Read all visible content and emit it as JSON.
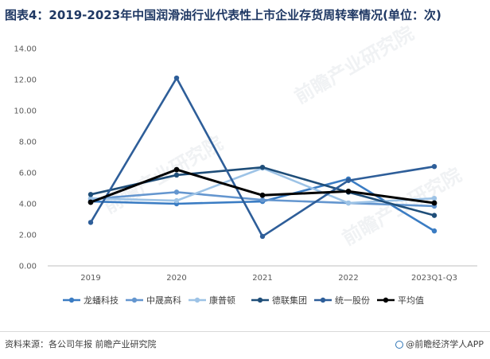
{
  "header": {
    "title": "图表4：2019-2023年中国润滑油行业代表性上市企业存货周转率情况(单位：次)"
  },
  "chart_data": {
    "type": "line",
    "categories": [
      "2019",
      "2020",
      "2021",
      "2022",
      "2023Q1-Q3"
    ],
    "ylim": [
      0,
      14
    ],
    "yticks": [
      "0.00",
      "2.00",
      "4.00",
      "6.00",
      "8.00",
      "10.00",
      "12.00",
      "14.00"
    ],
    "ytick_values": [
      0,
      2,
      4,
      6,
      8,
      10,
      12,
      14
    ],
    "grid": false,
    "legend_position": "bottom",
    "series": [
      {
        "name": "龙蟠科技",
        "color": "#3a7cc3",
        "values": [
          4.15,
          4.0,
          4.15,
          5.6,
          2.25
        ]
      },
      {
        "name": "中晟高科",
        "color": "#6496cf",
        "values": [
          4.3,
          4.75,
          4.25,
          4.05,
          3.85
        ]
      },
      {
        "name": "康普顿",
        "color": "#9dc3e6",
        "values": [
          4.35,
          4.2,
          6.3,
          4.05,
          4.35
        ]
      },
      {
        "name": "德联集团",
        "color": "#1f4e79",
        "values": [
          4.6,
          5.85,
          6.35,
          4.75,
          3.25
        ]
      },
      {
        "name": "统一股份",
        "color": "#2e5e99",
        "values": [
          2.8,
          12.1,
          1.9,
          5.5,
          6.4
        ]
      },
      {
        "name": "平均值",
        "color": "#000000",
        "values": [
          4.1,
          6.2,
          4.55,
          4.8,
          4.05
        ]
      }
    ]
  },
  "footer": {
    "source": "资料来源：各公司年报 前瞻产业研究院",
    "brand": "@前瞻经济学人APP"
  },
  "watermark": "前瞻产业研究院"
}
